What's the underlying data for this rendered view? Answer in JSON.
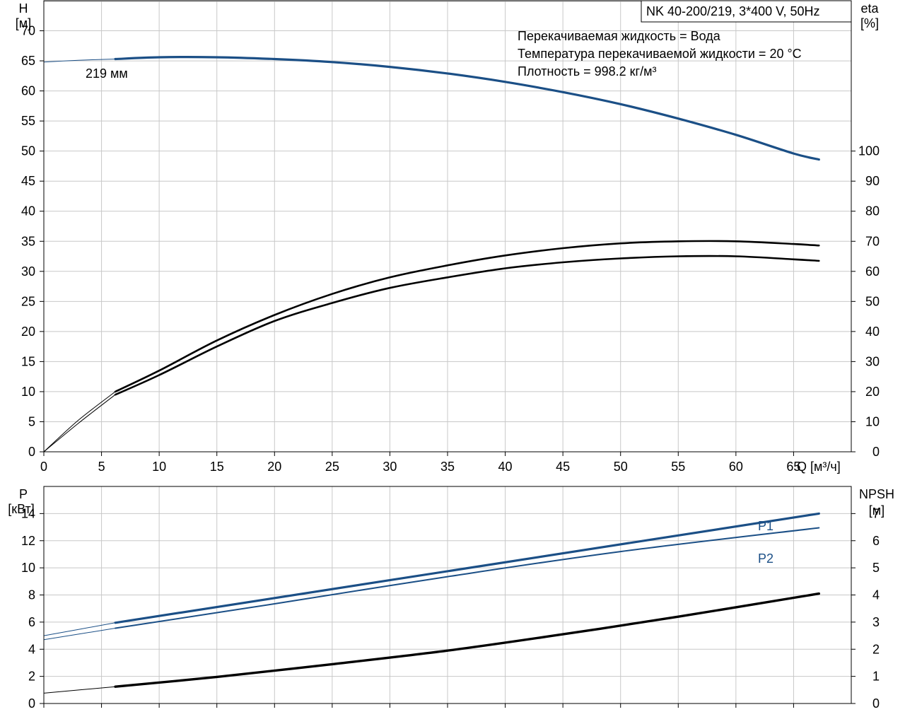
{
  "colors": {
    "head": "#1b4f86",
    "eta": "#000000",
    "power": "#1b4f86",
    "npsh": "#000000",
    "series_label": "#1b4f86"
  },
  "chart_data": [
    {
      "type": "line",
      "title": "NK 40-200/219, 3*400 V, 50Hz",
      "notes": [
        "Перекачиваемая жидкость = Вода",
        "Температура перекачиваемой жидкости = 20 °C",
        "Плотность = 998.2 кг/м³"
      ],
      "xlabel": "Q [м³/ч]",
      "xlim": [
        0,
        70
      ],
      "xticks": [
        0,
        5,
        10,
        15,
        20,
        25,
        30,
        35,
        40,
        45,
        50,
        55,
        60,
        65
      ],
      "left_axis": {
        "label_top": "H",
        "label_unit": "[м]",
        "ylim": [
          0,
          75
        ],
        "ticks": [
          0,
          5,
          10,
          15,
          20,
          25,
          30,
          35,
          40,
          45,
          50,
          55,
          60,
          65,
          70
        ]
      },
      "right_axis": {
        "label_top": "eta",
        "label_unit": "[%]",
        "ylim": [
          0,
          150
        ],
        "ticks": [
          0,
          10,
          20,
          30,
          40,
          50,
          60,
          70,
          80,
          90,
          100
        ]
      },
      "grid": true,
      "series": [
        {
          "name": "219 мм",
          "axis": "left",
          "role": "head",
          "x": [
            6.2,
            10,
            15,
            20,
            25,
            30,
            35,
            40,
            45,
            50,
            55,
            60,
            65,
            67.2
          ],
          "y": [
            65.3,
            65.6,
            65.6,
            65.3,
            64.8,
            64.0,
            62.9,
            61.5,
            59.8,
            57.8,
            55.4,
            52.7,
            49.6,
            48.6
          ],
          "extension": {
            "x": [
              0,
              3,
              6.2
            ],
            "y": [
              64.8,
              65.1,
              65.3
            ]
          }
        },
        {
          "axis": "right",
          "role": "eta",
          "x": [
            6.2,
            10,
            15,
            20,
            25,
            30,
            35,
            40,
            45,
            50,
            55,
            60,
            65,
            67.2
          ],
          "y": [
            20.0,
            27.0,
            37.0,
            45.5,
            52.5,
            58.0,
            62.0,
            65.3,
            67.7,
            69.3,
            70.0,
            70.0,
            69.1,
            68.6
          ],
          "extension": {
            "x": [
              0,
              3,
              6.2
            ],
            "y": [
              0,
              10.5,
              20.0
            ]
          }
        },
        {
          "axis": "right",
          "role": "eta",
          "x": [
            6.2,
            10,
            15,
            20,
            25,
            30,
            35,
            40,
            45,
            50,
            55,
            60,
            65,
            67.2
          ],
          "y": [
            19.0,
            25.5,
            35.0,
            43.5,
            49.5,
            54.5,
            58.0,
            61.0,
            63.0,
            64.3,
            65.0,
            65.0,
            64.0,
            63.5
          ],
          "extension": {
            "x": [
              0,
              3,
              6.2
            ],
            "y": [
              0,
              9.5,
              19.0
            ]
          }
        }
      ]
    },
    {
      "type": "line",
      "xlim": [
        0,
        70
      ],
      "left_axis": {
        "label_top": "P",
        "label_unit": "[кВт]",
        "ylim": [
          0,
          16
        ],
        "ticks": [
          0,
          2,
          4,
          6,
          8,
          10,
          12,
          14
        ]
      },
      "right_axis": {
        "label_top": "NPSH",
        "label_unit": "[м]",
        "ylim": [
          0,
          8
        ],
        "ticks": [
          0,
          1,
          2,
          3,
          4,
          5,
          6,
          7
        ]
      },
      "grid": true,
      "series": [
        {
          "name": "P1",
          "axis": "left",
          "role": "power1",
          "x": [
            6.2,
            67.2
          ],
          "y": [
            5.95,
            14.0
          ],
          "extension": {
            "x": [
              0,
              6.2
            ],
            "y": [
              5.0,
              5.95
            ]
          }
        },
        {
          "name": "P2",
          "axis": "left",
          "role": "power2",
          "x": [
            6.2,
            20,
            35,
            50,
            67.2
          ],
          "y": [
            5.55,
            7.35,
            9.35,
            11.2,
            12.95
          ],
          "extension": {
            "x": [
              0,
              6.2
            ],
            "y": [
              4.7,
              5.55
            ]
          }
        },
        {
          "axis": "right",
          "role": "npsh",
          "x": [
            6.2,
            15,
            25,
            35,
            45,
            55,
            67.2
          ],
          "y": [
            0.62,
            0.98,
            1.45,
            1.95,
            2.55,
            3.2,
            4.05
          ],
          "extension": {
            "x": [
              0,
              6.2
            ],
            "y": [
              0.38,
              0.62
            ]
          }
        }
      ]
    }
  ]
}
